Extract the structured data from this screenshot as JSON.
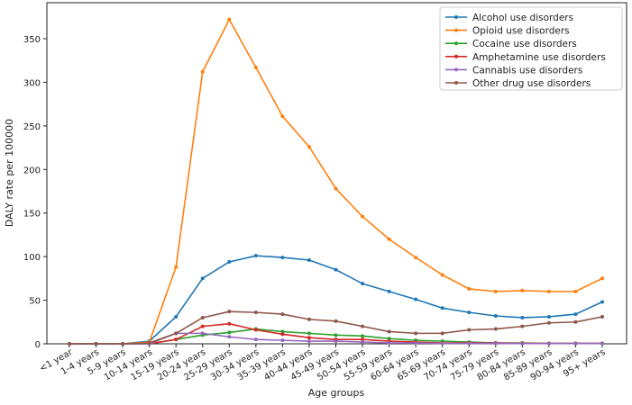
{
  "chart_data": {
    "type": "line",
    "title": "",
    "xlabel": "Age groups",
    "ylabel": "DALY rate per 100000",
    "ylim": [
      0,
      380
    ],
    "yticks": [
      0,
      50,
      100,
      150,
      200,
      250,
      300,
      350
    ],
    "grid": false,
    "legend_position": "top-right",
    "categories": [
      "<1 year",
      "1-4 years",
      "5-9 years",
      "10-14 years",
      "15-19 years",
      "20-24 years",
      "25-29 years",
      "30-34 years",
      "35-39 years",
      "40-44 years",
      "45-49 years",
      "50-54 years",
      "55-59 years",
      "60-64 years",
      "65-69 years",
      "70-74 years",
      "75-79 years",
      "80-84 years",
      "85-89 years",
      "90-94 years",
      "95+ years"
    ],
    "series": [
      {
        "name": "Alcohol use disorders",
        "color": "#1f77b4",
        "values": [
          0,
          0,
          0,
          3,
          31,
          75,
          94,
          101,
          99,
          96,
          85,
          69,
          60,
          51,
          41,
          36,
          32,
          30,
          31,
          34,
          48
        ]
      },
      {
        "name": "Opioid use disorders",
        "color": "#ff7f0e",
        "values": [
          0,
          0,
          0,
          2,
          88,
          312,
          372,
          317,
          261,
          226,
          178,
          146,
          120,
          99,
          79,
          63,
          60,
          61,
          60,
          60,
          75
        ]
      },
      {
        "name": "Cocaine use disorders",
        "color": "#2ca02c",
        "values": [
          0,
          0,
          0,
          0,
          5,
          10,
          13,
          17,
          14,
          12,
          10,
          9,
          6,
          4,
          3,
          2,
          1,
          1,
          0.5,
          0.5,
          0.5
        ]
      },
      {
        "name": "Amphetamine use disorders",
        "color": "#d62728",
        "values": [
          0,
          0,
          0,
          0,
          5,
          20,
          23,
          16,
          11,
          7,
          5,
          5,
          3,
          2,
          1,
          1,
          1,
          0.5,
          0.5,
          0.5,
          0.5
        ]
      },
      {
        "name": "Cannabis use disorders",
        "color": "#9467bd",
        "values": [
          0,
          0,
          0,
          0,
          12,
          12,
          8,
          5,
          4,
          3,
          3,
          2,
          1,
          1,
          0.5,
          0.5,
          0.5,
          0.3,
          0.3,
          0.3,
          0.3
        ]
      },
      {
        "name": "Other drug use disorders",
        "color": "#8c564b",
        "values": [
          0,
          0,
          0,
          1,
          12,
          30,
          37,
          36,
          34,
          28,
          26,
          20,
          14,
          12,
          12,
          16,
          17,
          20,
          24,
          25,
          31
        ]
      }
    ]
  }
}
